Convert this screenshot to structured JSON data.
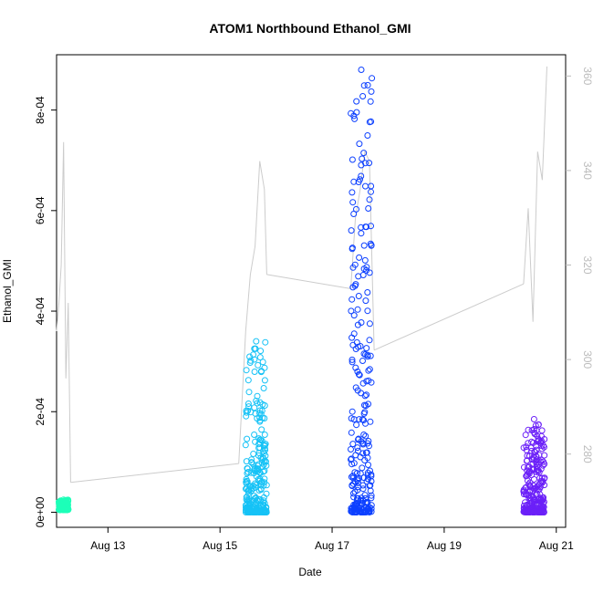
{
  "chart_data": {
    "type": "scatter",
    "title": "ATOM1 Northbound Ethanol_GMI",
    "xlabel": "Date",
    "ylabel": "Ethanol_GMI",
    "x_ticks": [
      "Aug 13",
      "Aug 15",
      "Aug 17",
      "Aug 19",
      "Aug 21"
    ],
    "y_ticks": [
      "0e+00",
      "2e-04",
      "4e-04",
      "6e-04",
      "8e-04"
    ],
    "y2_ticks": [
      "280",
      "300",
      "320",
      "340",
      "360"
    ],
    "xlim": [
      "2024-08-12 02:00",
      "2024-08-21 04:00"
    ],
    "ylim": [
      -3e-05,
      0.00091
    ],
    "y2lim": [
      264.5,
      364.5
    ],
    "series": [
      {
        "color": "#1DFFB8",
        "day": "2024-08-12",
        "start": "2024-08-12 03:00",
        "end": "2024-08-12 07:00",
        "min": 5e-06,
        "max": 2.5e-05
      },
      {
        "color": "#16C2F6",
        "day": "2024-08-15",
        "start": "2024-08-15 11:00",
        "end": "2024-08-15 20:00",
        "min": 0.0,
        "max": 0.00034
      },
      {
        "color": "#0D40FF",
        "day": "2024-08-17",
        "start": "2024-08-17 08:00",
        "end": "2024-08-17 17:00",
        "min": 0.0,
        "max": 0.00088
      },
      {
        "color": "#6B20F8",
        "day": "2024-08-20",
        "start": "2024-08-20 10:00",
        "end": "2024-08-20 19:00",
        "min": 0.0,
        "max": 0.000185
      }
    ],
    "secondary_line": {
      "color": "#cccccc",
      "segments": [
        {
          "x": [
            "2024-08-12 02:00",
            "2024-08-12 03:00",
            "2024-08-12 04:00",
            "2024-08-12 05:00",
            "2024-08-12 06:00",
            "2024-08-12 07:00",
            "2024-08-12 08:00"
          ],
          "y": [
            306,
            312,
            320,
            346,
            296,
            312,
            274
          ]
        },
        {
          "x": [
            "2024-08-12 08:00",
            "2024-08-15 08:00"
          ],
          "y": [
            274,
            278
          ]
        },
        {
          "x": [
            "2024-08-15 08:00",
            "2024-08-15 11:00",
            "2024-08-15 13:00",
            "2024-08-15 15:00",
            "2024-08-15 17:00",
            "2024-08-15 19:00",
            "2024-08-15 20:00"
          ],
          "y": [
            278,
            306,
            318,
            324,
            342,
            336,
            318
          ]
        },
        {
          "x": [
            "2024-08-15 20:00",
            "2024-08-17 08:00"
          ],
          "y": [
            318,
            315
          ]
        },
        {
          "x": [
            "2024-08-17 08:00",
            "2024-08-17 10:00",
            "2024-08-17 12:00",
            "2024-08-17 14:00",
            "2024-08-17 16:00",
            "2024-08-17 18:00"
          ],
          "y": [
            315,
            330,
            336,
            344,
            342,
            302
          ]
        },
        {
          "x": [
            "2024-08-17 18:00",
            "2024-08-20 10:00"
          ],
          "y": [
            302,
            316
          ]
        },
        {
          "x": [
            "2024-08-20 10:00",
            "2024-08-20 12:00",
            "2024-08-20 14:00",
            "2024-08-20 16:00",
            "2024-08-20 18:00",
            "2024-08-20 20:00"
          ],
          "y": [
            316,
            332,
            308,
            344,
            338,
            362
          ]
        }
      ]
    },
    "grid": false,
    "legend": "none"
  }
}
